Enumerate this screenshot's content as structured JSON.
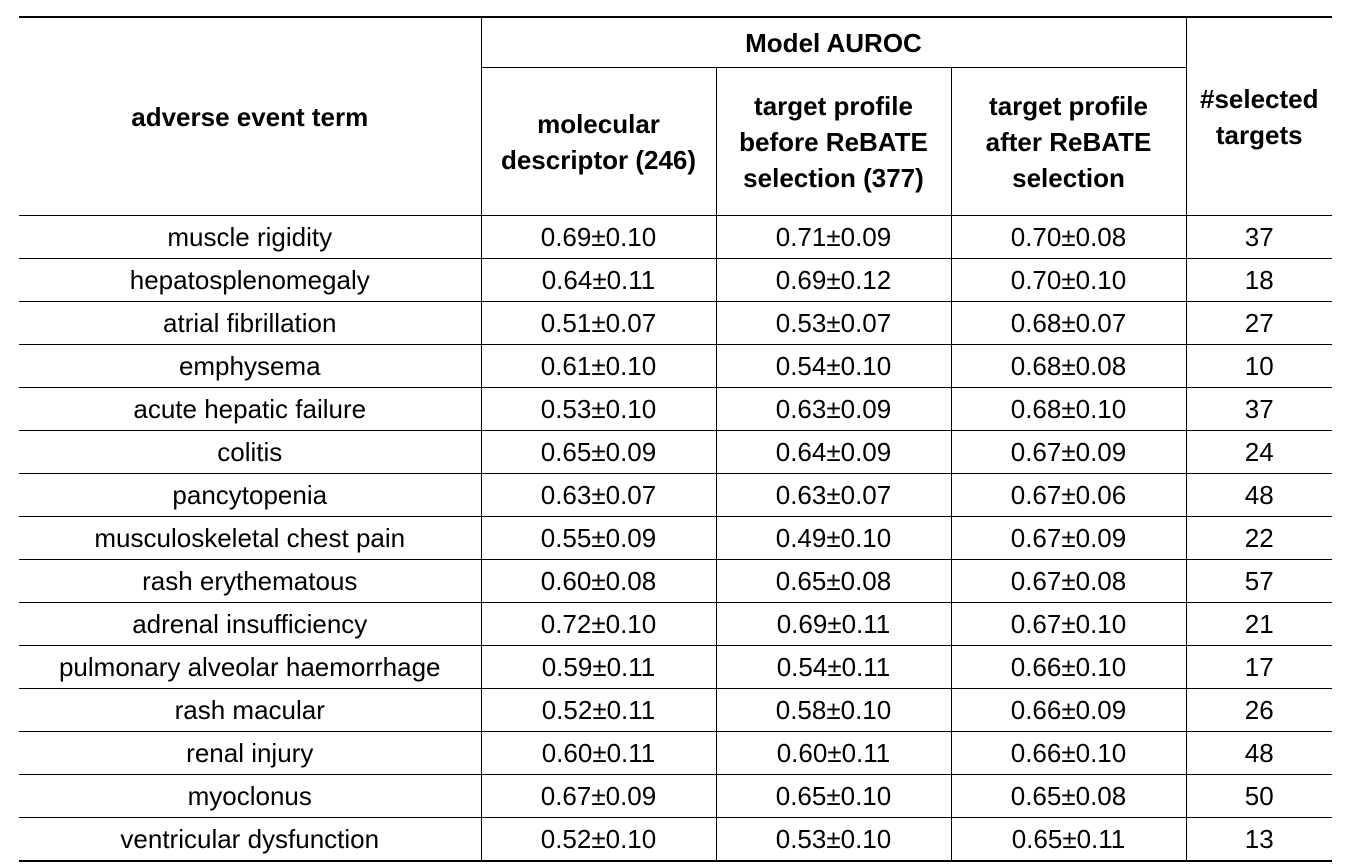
{
  "table": {
    "headers": {
      "term": "adverse event term",
      "group": "Model AUROC",
      "molecular": "molecular descriptor (246)",
      "before": "target profile before ReBATE selection (377)",
      "after": "target profile after ReBATE selection",
      "selected": "#selected targets"
    },
    "rows": [
      {
        "term": "muscle rigidity",
        "molecular": "0.69±0.10",
        "before": "0.71±0.09",
        "after": "0.70±0.08",
        "selected": "37"
      },
      {
        "term": "hepatosplenomegaly",
        "molecular": "0.64±0.11",
        "before": "0.69±0.12",
        "after": "0.70±0.10",
        "selected": "18"
      },
      {
        "term": "atrial fibrillation",
        "molecular": "0.51±0.07",
        "before": "0.53±0.07",
        "after": "0.68±0.07",
        "selected": "27"
      },
      {
        "term": "emphysema",
        "molecular": "0.61±0.10",
        "before": "0.54±0.10",
        "after": "0.68±0.08",
        "selected": "10"
      },
      {
        "term": "acute hepatic failure",
        "molecular": "0.53±0.10",
        "before": "0.63±0.09",
        "after": "0.68±0.10",
        "selected": "37"
      },
      {
        "term": "colitis",
        "molecular": "0.65±0.09",
        "before": "0.64±0.09",
        "after": "0.67±0.09",
        "selected": "24"
      },
      {
        "term": "pancytopenia",
        "molecular": "0.63±0.07",
        "before": "0.63±0.07",
        "after": "0.67±0.06",
        "selected": "48"
      },
      {
        "term": "musculoskeletal chest pain",
        "molecular": "0.55±0.09",
        "before": "0.49±0.10",
        "after": "0.67±0.09",
        "selected": "22"
      },
      {
        "term": "rash erythematous",
        "molecular": "0.60±0.08",
        "before": "0.65±0.08",
        "after": "0.67±0.08",
        "selected": "57"
      },
      {
        "term": "adrenal insufficiency",
        "molecular": "0.72±0.10",
        "before": "0.69±0.11",
        "after": "0.67±0.10",
        "selected": "21"
      },
      {
        "term": "pulmonary alveolar haemorrhage",
        "molecular": "0.59±0.11",
        "before": "0.54±0.11",
        "after": "0.66±0.10",
        "selected": "17"
      },
      {
        "term": "rash macular",
        "molecular": "0.52±0.11",
        "before": "0.58±0.10",
        "after": "0.66±0.09",
        "selected": "26"
      },
      {
        "term": "renal injury",
        "molecular": "0.60±0.11",
        "before": "0.60±0.11",
        "after": "0.66±0.10",
        "selected": "48"
      },
      {
        "term": "myoclonus",
        "molecular": "0.67±0.09",
        "before": "0.65±0.10",
        "after": "0.65±0.08",
        "selected": "50"
      },
      {
        "term": "ventricular dysfunction",
        "molecular": "0.52±0.10",
        "before": "0.53±0.10",
        "after": "0.65±0.11",
        "selected": "13"
      }
    ]
  }
}
